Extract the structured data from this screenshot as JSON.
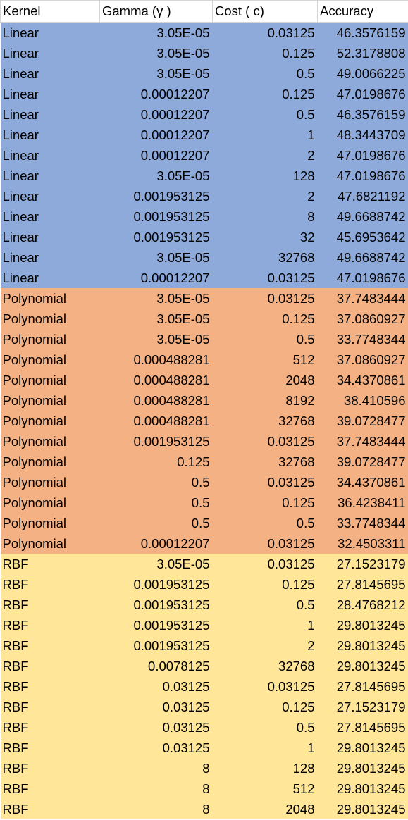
{
  "headers": [
    "Kernel",
    "Gamma (γ )",
    "Cost ( c)",
    "Accuracy"
  ],
  "colors": {
    "Linear": "#8eaadb",
    "Polynomial": "#f4b183",
    "RBF": "#ffe699"
  },
  "rows": [
    [
      "Linear",
      "3.05E-05",
      "0.03125",
      "46.3576159"
    ],
    [
      "Linear",
      "3.05E-05",
      "0.125",
      "52.3178808"
    ],
    [
      "Linear",
      "3.05E-05",
      "0.5",
      "49.0066225"
    ],
    [
      "Linear",
      "0.00012207",
      "0.125",
      "47.0198676"
    ],
    [
      "Linear",
      "0.00012207",
      "0.5",
      "46.3576159"
    ],
    [
      "Linear",
      "0.00012207",
      "1",
      "48.3443709"
    ],
    [
      "Linear",
      "0.00012207",
      "2",
      "47.0198676"
    ],
    [
      "Linear",
      "3.05E-05",
      "128",
      "47.0198676"
    ],
    [
      "Linear",
      "0.001953125",
      "2",
      "47.6821192"
    ],
    [
      "Linear",
      "0.001953125",
      "8",
      "49.6688742"
    ],
    [
      "Linear",
      "0.001953125",
      "32",
      "45.6953642"
    ],
    [
      "Linear",
      "3.05E-05",
      "32768",
      "49.6688742"
    ],
    [
      "Linear",
      "0.00012207",
      "0.03125",
      "47.0198676"
    ],
    [
      "Polynomial",
      "3.05E-05",
      "0.03125",
      "37.7483444"
    ],
    [
      "Polynomial",
      "3.05E-05",
      "0.125",
      "37.0860927"
    ],
    [
      "Polynomial",
      "3.05E-05",
      "0.5",
      "33.7748344"
    ],
    [
      "Polynomial",
      "0.000488281",
      "512",
      "37.0860927"
    ],
    [
      "Polynomial",
      "0.000488281",
      "2048",
      "34.4370861"
    ],
    [
      "Polynomial",
      "0.000488281",
      "8192",
      "38.410596"
    ],
    [
      "Polynomial",
      "0.000488281",
      "32768",
      "39.0728477"
    ],
    [
      "Polynomial",
      "0.001953125",
      "0.03125",
      "37.7483444"
    ],
    [
      "Polynomial",
      "0.125",
      "32768",
      "39.0728477"
    ],
    [
      "Polynomial",
      "0.5",
      "0.03125",
      "34.4370861"
    ],
    [
      "Polynomial",
      "0.5",
      "0.125",
      "36.4238411"
    ],
    [
      "Polynomial",
      "0.5",
      "0.5",
      "33.7748344"
    ],
    [
      "Polynomial",
      "0.00012207",
      "0.03125",
      "32.4503311"
    ],
    [
      "RBF",
      "3.05E-05",
      "0.03125",
      "27.1523179"
    ],
    [
      "RBF",
      "0.001953125",
      "0.125",
      "27.8145695"
    ],
    [
      "RBF",
      "0.001953125",
      "0.5",
      "28.4768212"
    ],
    [
      "RBF",
      "0.001953125",
      "1",
      "29.8013245"
    ],
    [
      "RBF",
      "0.001953125",
      "2",
      "29.8013245"
    ],
    [
      "RBF",
      "0.0078125",
      "32768",
      "29.8013245"
    ],
    [
      "RBF",
      "0.03125",
      "0.03125",
      "27.8145695"
    ],
    [
      "RBF",
      "0.03125",
      "0.125",
      "27.1523179"
    ],
    [
      "RBF",
      "0.03125",
      "0.5",
      "27.8145695"
    ],
    [
      "RBF",
      "0.03125",
      "1",
      "29.8013245"
    ],
    [
      "RBF",
      "8",
      "128",
      "29.8013245"
    ],
    [
      "RBF",
      "8",
      "512",
      "29.8013245"
    ],
    [
      "RBF",
      "8",
      "2048",
      "29.8013245"
    ]
  ]
}
